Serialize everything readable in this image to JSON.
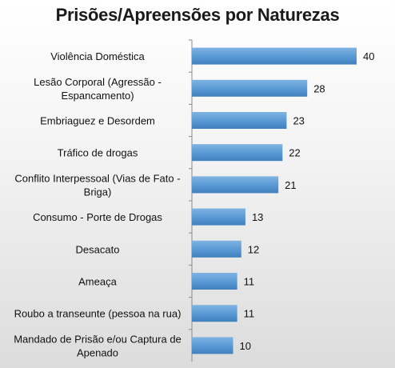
{
  "chart_data": {
    "type": "bar",
    "orientation": "horizontal",
    "title": "Prisões/Apreensões por Naturezas",
    "xlabel": "",
    "ylabel": "",
    "categories": [
      "Violência Doméstica",
      "Lesão Corporal (Agressão - Espancamento)",
      "Embriaguez e Desordem",
      "Tráfico de drogas",
      "Conflito Interpessoal (Vias de Fato - Briga)",
      "Consumo - Porte de Drogas",
      "Desacato",
      "Ameaça",
      "Roubo a transeunte (pessoa na rua)",
      "Mandado de Prisão e/ou Captura de Apenado"
    ],
    "category_lines": [
      [
        "Violência Doméstica"
      ],
      [
        "Lesão Corporal (Agressão -",
        "Espancamento)"
      ],
      [
        "Embriaguez e Desordem"
      ],
      [
        "Tráfico de drogas"
      ],
      [
        "Conflito Interpessoal (Vias de Fato -",
        "Briga)"
      ],
      [
        "Consumo - Porte de Drogas"
      ],
      [
        "Desacato"
      ],
      [
        "Ameaça"
      ],
      [
        "Roubo a transeunte (pessoa na rua)"
      ],
      [
        "Mandado de Prisão e/ou Captura de",
        "Apenado"
      ]
    ],
    "values": [
      40,
      28,
      23,
      22,
      21,
      13,
      12,
      11,
      11,
      10
    ],
    "xlim": [
      0,
      40
    ],
    "grid": false,
    "legend": "none",
    "bar_color": "#5b9bd5"
  }
}
